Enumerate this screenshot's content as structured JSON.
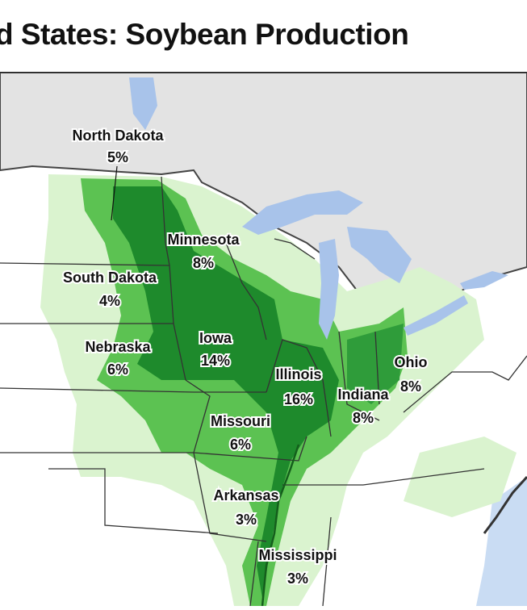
{
  "title": "d States: Soybean Production",
  "colors": {
    "canada": "#e3e3e3",
    "water": "#a8c3ea",
    "us_land": "#ffffff",
    "low_production": "#daf3cf",
    "medium_production": "#5cc252",
    "high_production": "#1e8a2c",
    "borders": "#333333"
  },
  "states": [
    {
      "name": "North Dakota",
      "share": "5%"
    },
    {
      "name": "Minnesota",
      "share": "8%"
    },
    {
      "name": "South Dakota",
      "share": "4%"
    },
    {
      "name": "Nebraska",
      "share": "6%"
    },
    {
      "name": "Iowa",
      "share": "14%"
    },
    {
      "name": "Illinois",
      "share": "16%"
    },
    {
      "name": "Indiana",
      "share": "8%"
    },
    {
      "name": "Ohio",
      "share": "8%"
    },
    {
      "name": "Missouri",
      "share": "6%"
    },
    {
      "name": "Arkansas",
      "share": "3%"
    },
    {
      "name": "Mississippi",
      "share": "3%"
    }
  ]
}
